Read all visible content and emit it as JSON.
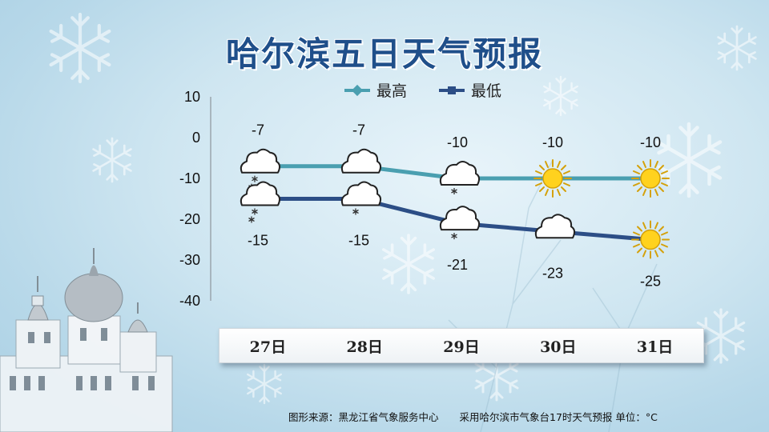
{
  "title": "哈尔滨五日天气预报",
  "chart_data": {
    "type": "line",
    "categories": [
      "27日",
      "28日",
      "29日",
      "30日",
      "31日"
    ],
    "series": [
      {
        "name": "最高",
        "values": [
          -7,
          -7,
          -10,
          -10,
          -10
        ],
        "color": "#4a9fb0",
        "weather": [
          "cloud-snow",
          "cloud",
          "cloud-snow",
          "sun",
          "sun"
        ]
      },
      {
        "name": "最低",
        "values": [
          -15,
          -15,
          -21,
          -23,
          -25
        ],
        "color": "#2c4e86",
        "weather": [
          "cloud-snow",
          "cloud-snow",
          "cloud-snow",
          "cloud",
          "sun"
        ]
      }
    ],
    "ylim": [
      -40,
      10
    ],
    "yticks": [
      "10",
      "0",
      "-10",
      "-20",
      "-30",
      "-40"
    ],
    "legend_position": "top-center",
    "grid": false
  },
  "footer": {
    "source": "图形来源：黑龙江省气象服务中心",
    "note": "采用哈尔滨市气象台17时天气预报 单位：°C"
  }
}
